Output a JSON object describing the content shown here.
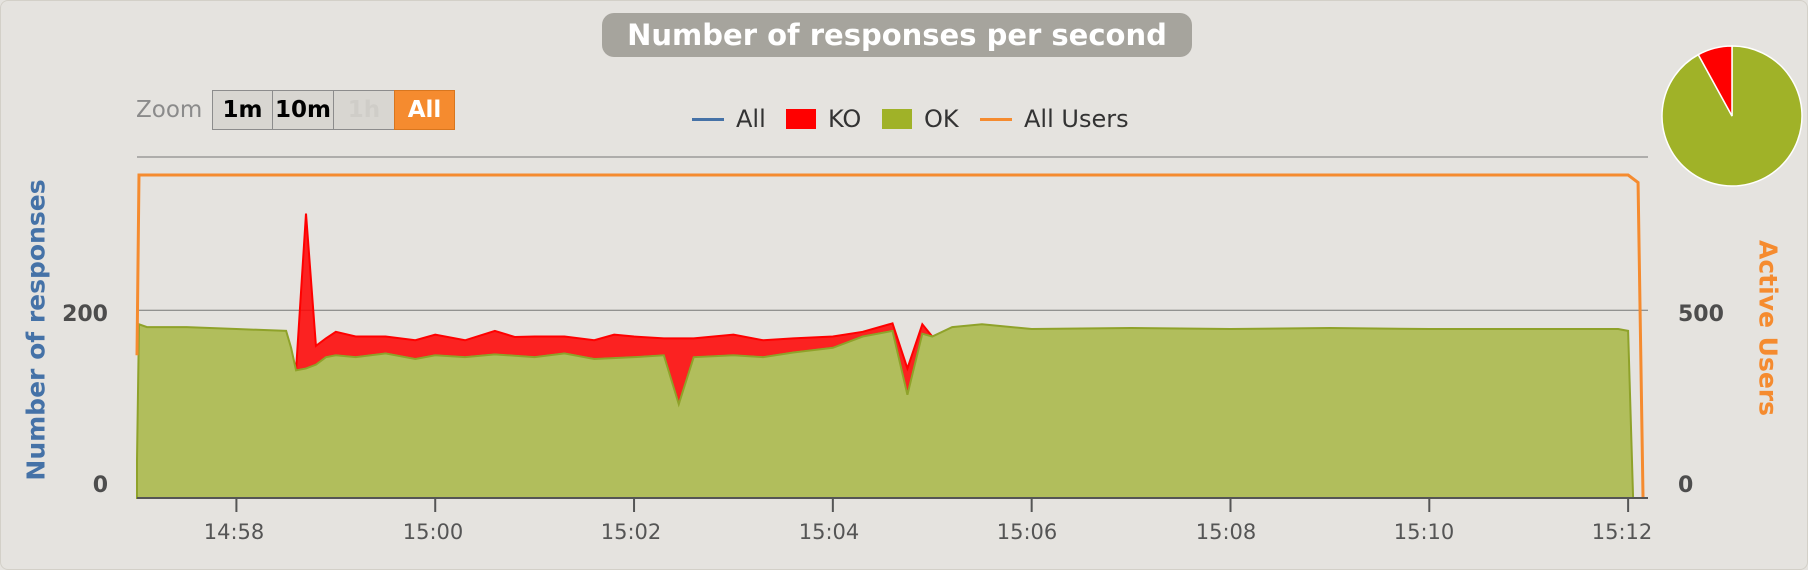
{
  "title": "Number of responses per second",
  "zoom": {
    "label": "Zoom",
    "buttons": [
      "1m",
      "10m",
      "1h",
      "All"
    ],
    "selected": "All"
  },
  "legend": [
    {
      "name": "All",
      "color": "#4572a7",
      "kind": "line"
    },
    {
      "name": "KO",
      "color": "#ff0000",
      "kind": "box"
    },
    {
      "name": "OK",
      "color": "#a0b228",
      "kind": "box"
    },
    {
      "name": "All Users",
      "color": "#f58b2f",
      "kind": "line"
    }
  ],
  "chart_data": {
    "type": "area",
    "title": "Number of responses per second",
    "ylabel": "Number of responses",
    "ylabel_right": "Active Users",
    "yticks_left": [
      0,
      200
    ],
    "yticks_right": [
      0,
      500
    ],
    "ylim_left": [
      0,
      360
    ],
    "ylim_right": [
      0,
      900
    ],
    "xticks": [
      "14:58",
      "15:00",
      "15:02",
      "15:04",
      "15:06",
      "15:08",
      "15:10",
      "15:12"
    ],
    "xlim_minutes": [
      -1.0,
      14.2
    ],
    "xtick_minutes": [
      0,
      2,
      4,
      6,
      8,
      10,
      12,
      14
    ],
    "grid": true,
    "legend_position": "top-center",
    "series": [
      {
        "name": "OK",
        "color": "#a0b228",
        "x_minutes": [
          -1.0,
          -0.98,
          -0.9,
          -0.5,
          0,
          0.5,
          0.55,
          0.6,
          0.7,
          0.8,
          0.9,
          1.0,
          1.2,
          1.5,
          1.8,
          2.0,
          2.3,
          2.6,
          3.0,
          3.3,
          3.6,
          4.0,
          4.3,
          4.45,
          4.6,
          5.0,
          5.3,
          5.6,
          6.0,
          6.3,
          6.6,
          6.75,
          6.9,
          7.0,
          7.2,
          7.5,
          8.0,
          9.0,
          10.0,
          11.0,
          12.0,
          13.0,
          13.9,
          14.0,
          14.05
        ],
        "values": [
          40,
          185,
          182,
          182,
          180,
          178,
          160,
          136,
          138,
          142,
          150,
          152,
          150,
          154,
          148,
          152,
          150,
          153,
          150,
          154,
          148,
          150,
          152,
          100,
          150,
          152,
          150,
          155,
          160,
          172,
          178,
          110,
          175,
          172,
          182,
          185,
          180,
          181,
          180,
          181,
          180,
          180,
          180,
          178,
          0
        ]
      },
      {
        "name": "KO",
        "color": "#ff0000",
        "x_minutes": [
          0.6,
          0.7,
          0.8,
          0.9,
          1.0,
          1.2,
          1.5,
          1.8,
          2.0,
          2.3,
          2.6,
          2.8,
          3.0,
          3.3,
          3.6,
          3.8,
          4.0,
          4.3,
          4.45,
          4.6,
          5.0,
          5.3,
          5.6,
          6.0,
          6.3,
          6.6,
          6.75,
          6.9,
          7.0
        ],
        "values": [
          0,
          165,
          20,
          20,
          25,
          22,
          18,
          20,
          22,
          18,
          25,
          20,
          22,
          18,
          20,
          25,
          22,
          18,
          70,
          20,
          22,
          18,
          15,
          12,
          5,
          8,
          28,
          10,
          0
        ]
      },
      {
        "name": "All Users",
        "color": "#f58b2f",
        "axis": "right",
        "x_minutes": [
          -1.0,
          -0.98,
          14.0,
          14.1,
          14.15
        ],
        "values": [
          380,
          860,
          860,
          840,
          0
        ]
      }
    ]
  },
  "pie": {
    "slices": [
      {
        "name": "OK",
        "value": 92,
        "color": "#a0b228"
      },
      {
        "name": "KO",
        "value": 8,
        "color": "#ff0000"
      }
    ]
  }
}
